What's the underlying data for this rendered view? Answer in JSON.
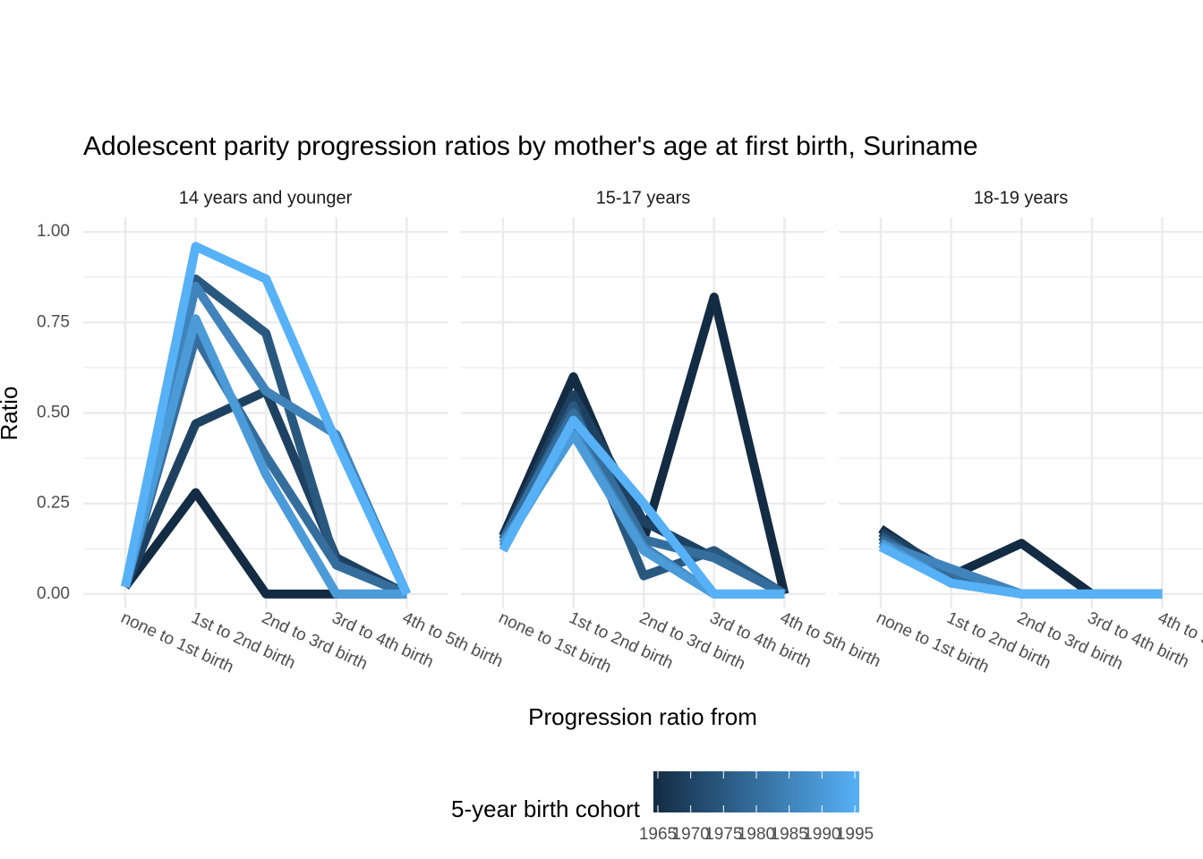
{
  "chart_data": {
    "type": "line",
    "title": "Adolescent parity progression ratios by mother's age at first birth,  Suriname",
    "x_label": "Progression ratio from",
    "y_label": "Ratio",
    "categories": [
      "none to 1st birth",
      "1st to 2nd birth",
      "2nd to 3rd birth",
      "3rd to 4th birth",
      "4th to 5th birth"
    ],
    "ylim": [
      -0.04,
      1.04
    ],
    "yticks": [
      {
        "value": 0,
        "label": "0.00"
      },
      {
        "value": 0.25,
        "label": "0.25"
      },
      {
        "value": 0.5,
        "label": "0.50"
      },
      {
        "value": 0.75,
        "label": "0.75"
      },
      {
        "value": 1,
        "label": "1.00"
      }
    ],
    "grid": true,
    "legend": {
      "title": "5-year birth cohort",
      "position": "bottom",
      "range": [
        1965,
        1995
      ],
      "low_color": "#132B43",
      "high_color": "#56B1F7",
      "ticks": [
        1965,
        1970,
        1975,
        1980,
        1985,
        1990,
        1995
      ]
    },
    "panels": [
      {
        "title": "14 years and younger",
        "series": [
          {
            "cohort": 1965,
            "values": [
              0.02,
              0.28,
              0.0,
              0.0,
              0.0
            ]
          },
          {
            "cohort": 1970,
            "values": [
              0.02,
              0.47,
              0.56,
              0.1,
              0.0
            ]
          },
          {
            "cohort": 1975,
            "values": [
              0.02,
              0.87,
              0.72,
              0.08,
              0.0
            ]
          },
          {
            "cohort": 1980,
            "values": [
              0.02,
              0.71,
              0.38,
              0.08,
              0.0
            ]
          },
          {
            "cohort": 1985,
            "values": [
              0.02,
              0.85,
              0.56,
              0.44,
              0.0
            ]
          },
          {
            "cohort": 1990,
            "values": [
              0.02,
              0.76,
              0.33,
              0.0,
              0.0
            ]
          },
          {
            "cohort": 1995,
            "values": [
              0.02,
              0.96,
              0.87,
              0.42,
              0.0
            ]
          }
        ]
      },
      {
        "title": "15-17 years",
        "series": [
          {
            "cohort": 1965,
            "values": [
              0.16,
              0.6,
              0.15,
              0.82,
              0.0
            ]
          },
          {
            "cohort": 1970,
            "values": [
              0.15,
              0.55,
              0.2,
              0.1,
              0.0
            ]
          },
          {
            "cohort": 1975,
            "values": [
              0.14,
              0.52,
              0.05,
              0.12,
              0.0
            ]
          },
          {
            "cohort": 1980,
            "values": [
              0.15,
              0.5,
              0.15,
              0.1,
              0.0
            ]
          },
          {
            "cohort": 1985,
            "values": [
              0.13,
              0.45,
              0.13,
              0.0,
              0.0
            ]
          },
          {
            "cohort": 1990,
            "values": [
              0.14,
              0.44,
              0.12,
              0.0,
              0.0
            ]
          },
          {
            "cohort": 1995,
            "values": [
              0.12,
              0.48,
              0.25,
              0.0,
              0.0
            ]
          }
        ]
      },
      {
        "title": "18-19 years",
        "series": [
          {
            "cohort": 1965,
            "values": [
              0.18,
              0.05,
              0.14,
              0.0,
              0.0
            ]
          },
          {
            "cohort": 1970,
            "values": [
              0.17,
              0.06,
              0.0,
              0.0,
              0.0
            ]
          },
          {
            "cohort": 1975,
            "values": [
              0.16,
              0.04,
              0.0,
              0.0,
              0.0
            ]
          },
          {
            "cohort": 1980,
            "values": [
              0.15,
              0.05,
              0.0,
              0.0,
              0.0
            ]
          },
          {
            "cohort": 1985,
            "values": [
              0.14,
              0.07,
              0.0,
              0.0,
              0.0
            ]
          },
          {
            "cohort": 1990,
            "values": [
              0.14,
              0.03,
              0.0,
              0.0,
              0.0
            ]
          },
          {
            "cohort": 1995,
            "values": [
              0.13,
              0.03,
              0.0,
              0.0,
              0.0
            ]
          }
        ]
      }
    ]
  }
}
